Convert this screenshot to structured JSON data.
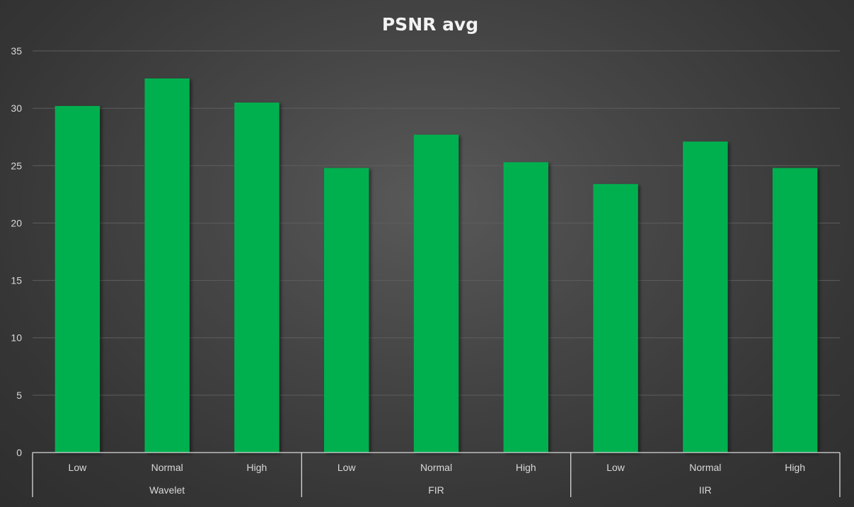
{
  "chart_data": {
    "type": "bar",
    "title": "PSNR avg",
    "xlabel": "",
    "ylabel": "",
    "ylim": [
      0,
      35
    ],
    "yticks": [
      0,
      5,
      10,
      15,
      20,
      25,
      30,
      35
    ],
    "grid": true,
    "legend": "none",
    "bar_color": "#00b050",
    "groups": [
      {
        "name": "Wavelet",
        "categories": [
          "Low",
          "Normal",
          "High"
        ],
        "values": [
          30.2,
          32.6,
          30.5
        ]
      },
      {
        "name": "FIR",
        "categories": [
          "Low",
          "Normal",
          "High"
        ],
        "values": [
          24.8,
          27.7,
          25.3
        ]
      },
      {
        "name": "IIR",
        "categories": [
          "Low",
          "Normal",
          "High"
        ],
        "values": [
          23.4,
          27.1,
          24.8
        ]
      }
    ]
  }
}
